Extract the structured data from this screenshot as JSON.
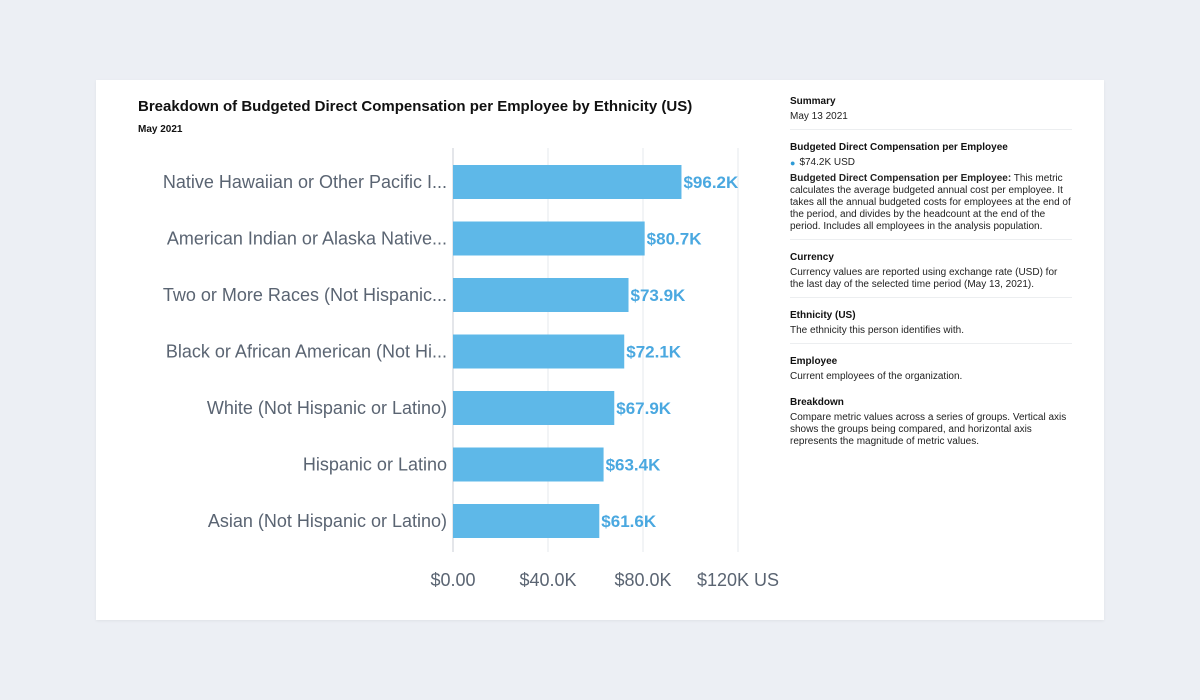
{
  "chart_data": {
    "type": "bar",
    "orientation": "horizontal",
    "title": "Breakdown of Budgeted Direct Compensation per Employee by Ethnicity (US)",
    "subtitle": "May 2021",
    "categories": [
      "Native Hawaiian or Other Pacific I...",
      "American Indian or Alaska Native...",
      "Two or More Races (Not Hispanic...",
      "Black or African American (Not Hi...",
      "White (Not Hispanic or Latino)",
      "Hispanic or Latino",
      "Asian (Not Hispanic or Latino)"
    ],
    "values": [
      96.2,
      80.7,
      73.9,
      72.1,
      67.9,
      63.4,
      61.6
    ],
    "value_labels": [
      "$96.2K",
      "$80.7K",
      "$73.9K",
      "$72.1K",
      "$67.9K",
      "$63.4K",
      "$61.6K"
    ],
    "x_ticks": [
      0,
      40,
      80,
      120
    ],
    "x_tick_labels": [
      "$0.00",
      "$40.0K",
      "$80.0K",
      "$120K US"
    ],
    "xlim": [
      0,
      120
    ],
    "grid": true,
    "colors": {
      "bar": "#5eb8e8",
      "label": "#4aa8e0",
      "axis_text": "#5a6472"
    }
  },
  "sidebar": {
    "summary": {
      "heading": "Summary",
      "text": "May 13 2021"
    },
    "metric": {
      "heading": "Budgeted Direct Compensation per Employee",
      "value": "$74.2K USD",
      "def_term": "Budgeted Direct Compensation per Employee:",
      "def_text": " This metric calculates the average budgeted annual cost per employee. It takes all the annual budgeted costs for employees at the end of the period, and divides by the headcount at the end of the period. Includes all employees in the analysis population."
    },
    "currency": {
      "heading": "Currency",
      "text": "Currency values are reported using exchange rate (USD) for the last day of the selected time period (May 13, 2021)."
    },
    "ethnicity": {
      "heading": "Ethnicity (US)",
      "text": "The ethnicity this person identifies with."
    },
    "employee": {
      "heading": "Employee",
      "text": "Current employees of the organization."
    },
    "breakdown": {
      "heading": "Breakdown",
      "text": "Compare metric values across a series of groups. Vertical axis shows the groups being compared, and horizontal axis represents the magnitude of metric values."
    }
  }
}
